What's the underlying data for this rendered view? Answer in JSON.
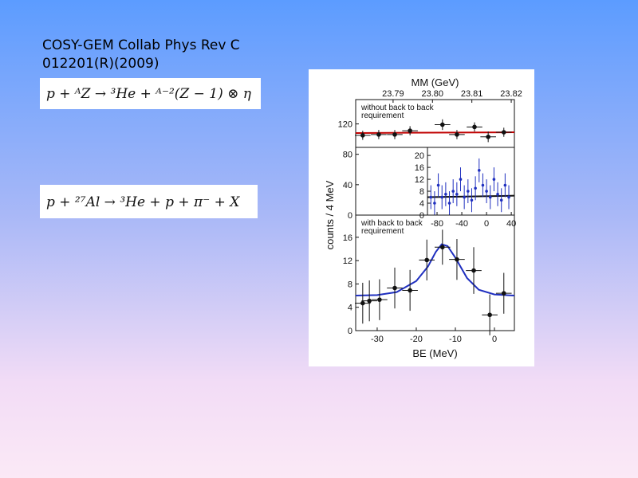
{
  "slide": {
    "title_lines": [
      "COSY-GEM Collab    Phys Rev C",
      "012201(R)(2009)"
    ],
    "equations": [
      "p + ᴬZ → ³He + ᴬ⁻²(Z − 1) ⊗ η",
      "p + ²⁷Al → ³He + p + π⁻ + X"
    ]
  },
  "chart_data": [
    {
      "type": "scatter",
      "annotation": [
        "without back to back",
        "requirement"
      ],
      "x2label": "MM (GeV)",
      "x2lim": [
        23.7805,
        23.8208
      ],
      "x2ticks": [
        23.79,
        {
          "value": 23.8,
          "label": "23.80"
        },
        23.81,
        23.82
      ],
      "xlim": [
        -35.5,
        5.1
      ],
      "ylim": [
        0,
        152
      ],
      "yticks": [
        0,
        40,
        80,
        120
      ],
      "points": {
        "color": "#111111",
        "x": [
          -33.7,
          -29.6,
          -25.5,
          -21.6,
          -13.3,
          -9.6,
          -5.1,
          -1.6,
          2.4
        ],
        "values": [
          105,
          106,
          106,
          111,
          119,
          106,
          116,
          103,
          109
        ],
        "errors": [
          6,
          6,
          6,
          6,
          7,
          6,
          6,
          7,
          6
        ],
        "xerrors": [
          2,
          2,
          2,
          2,
          2,
          2,
          2,
          2,
          2
        ]
      },
      "fit": {
        "color": "#c00000",
        "x": [
          -35.5,
          5.1
        ],
        "values": [
          108,
          109
        ]
      }
    },
    {
      "type": "scatter",
      "xlim": [
        -95.5,
        45
      ],
      "ylim": [
        0,
        22.7
      ],
      "yticks": [
        0,
        4,
        8,
        12,
        16,
        20
      ],
      "xticks": [
        -80,
        -40,
        0,
        40
      ],
      "points": {
        "color": "#1f2fbf",
        "x": [
          -90,
          -84,
          -78,
          -72,
          -66,
          -60,
          -54,
          -48,
          -42,
          -36,
          -30,
          -24,
          -18,
          -12,
          -6,
          0,
          6,
          12,
          18,
          24,
          30,
          36
        ],
        "values": [
          6,
          4,
          10,
          6,
          7,
          4,
          8,
          7,
          12,
          6,
          8,
          5,
          9,
          15,
          10,
          8,
          6,
          12,
          7,
          5,
          10,
          6
        ],
        "errors": [
          4,
          4,
          4,
          4,
          4,
          4,
          4,
          4,
          4,
          4,
          4,
          4,
          4,
          4,
          4,
          4,
          4,
          4,
          4,
          4,
          4,
          4
        ]
      },
      "fit": {
        "color": "#111111",
        "x": [
          -95.5,
          45
        ],
        "values": [
          6,
          6.5
        ]
      }
    },
    {
      "type": "scatter",
      "annotation": [
        "with back to back",
        "requirement"
      ],
      "xlabel": "BE (MeV)",
      "ylabel": "counts / 4 MeV",
      "xlim": [
        -35.5,
        5.1
      ],
      "ylim": [
        0,
        19.8
      ],
      "yticks": [
        0,
        4,
        8,
        12,
        16
      ],
      "xticks": [
        -30,
        -20,
        -10,
        0
      ],
      "points": {
        "color": "#111111",
        "x": [
          -33.7,
          -32,
          -29.4,
          -25.5,
          -21.6,
          -17.3,
          -13.3,
          -9.6,
          -5.3,
          -1.2,
          2.4
        ],
        "values": [
          4.7,
          5.1,
          5.3,
          7.3,
          6.9,
          12.1,
          14.3,
          12.2,
          10.3,
          2.7,
          6.4
        ],
        "errors": [
          3.5,
          3.5,
          3.5,
          3.5,
          3.5,
          3.5,
          3,
          3.5,
          4,
          3.5,
          3.5
        ],
        "xerrors": [
          2,
          2,
          2,
          2,
          2,
          2,
          2,
          2,
          2,
          2,
          2
        ]
      },
      "fit": {
        "color": "#1f2fbf",
        "x": [
          -35.5,
          -30,
          -25,
          -20,
          -17,
          -15,
          -13.5,
          -12,
          -10,
          -7,
          -4,
          0,
          5.1
        ],
        "values": [
          6,
          6.1,
          6.6,
          8.5,
          11,
          13.5,
          14.8,
          14.5,
          12.5,
          9,
          7,
          6.2,
          6
        ]
      }
    }
  ]
}
